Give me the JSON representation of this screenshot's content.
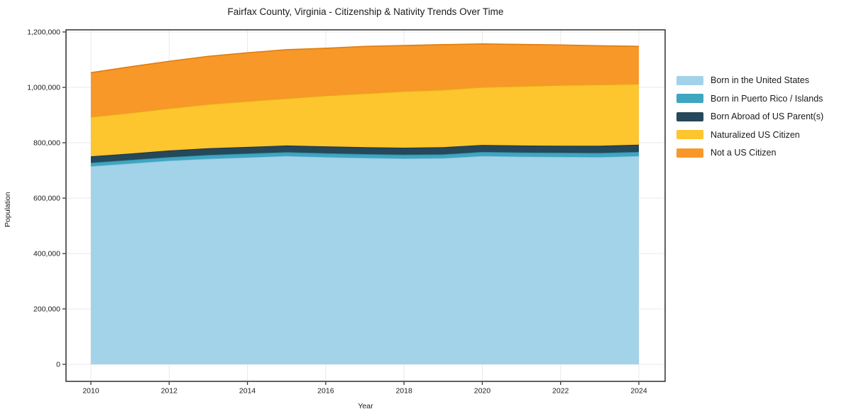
{
  "title": "Fairfax County, Virginia - Citizenship & Nativity Trends Over Time",
  "xlabel": "Year",
  "ylabel": "Population",
  "colors": {
    "background": "#ffffff",
    "frame": "#2e2e2e",
    "grid": "#e9e9e9",
    "text": "#1a1a1a"
  },
  "chart_data": {
    "type": "area",
    "stacked": true,
    "title": "Fairfax County, Virginia - Citizenship & Nativity Trends Over Time",
    "xlabel": "Year",
    "ylabel": "Population",
    "grid": true,
    "legend_position": "right",
    "xlim": [
      2010,
      2024
    ],
    "ylim": [
      0,
      1200000
    ],
    "x": [
      2010,
      2011,
      2012,
      2013,
      2014,
      2015,
      2016,
      2017,
      2018,
      2019,
      2020,
      2021,
      2022,
      2023,
      2024
    ],
    "xticks": [
      "2010",
      "2012",
      "2014",
      "2016",
      "2018",
      "2020",
      "2022",
      "2024"
    ],
    "yticks": [
      0,
      200000,
      400000,
      600000,
      800000,
      1000000,
      1200000
    ],
    "ytick_labels": [
      "0",
      "200,000",
      "400,000",
      "600,000",
      "800,000",
      "1,000,000",
      "1,200,000"
    ],
    "series": [
      {
        "name": "Born in the United States",
        "color": "#a3d3e8",
        "edge": "#85bfdb",
        "values": [
          715000,
          725000,
          735000,
          742000,
          747000,
          752000,
          748000,
          745000,
          743000,
          744000,
          752000,
          750000,
          749000,
          748000,
          752000
        ]
      },
      {
        "name": "Born in Puerto Rico / Islands",
        "color": "#3ea6c0",
        "edge": "#2e8ba3",
        "values": [
          13000,
          13000,
          13000,
          14000,
          14000,
          14000,
          14000,
          14000,
          14000,
          14000,
          15000,
          15000,
          15000,
          15000,
          15000
        ]
      },
      {
        "name": "Born Abroad of US Parent(s)",
        "color": "#25485a",
        "edge": "#16303d",
        "values": [
          23000,
          23000,
          24000,
          24000,
          24000,
          24000,
          25000,
          25000,
          25000,
          26000,
          25000,
          25000,
          25000,
          26000,
          26000
        ]
      },
      {
        "name": "Naturalized US Citizen",
        "color": "#fdc52e",
        "edge": "#e5ab15",
        "values": [
          142000,
          147000,
          152000,
          159000,
          165000,
          170000,
          183000,
          194000,
          204000,
          207000,
          209000,
          214000,
          219000,
          221000,
          219000
        ]
      },
      {
        "name": "Not a US Citizen",
        "color": "#f89829",
        "edge": "#df7f13",
        "values": [
          160000,
          166000,
          170000,
          173000,
          175000,
          176000,
          171000,
          170000,
          165000,
          163000,
          156000,
          151000,
          145000,
          140000,
          136000
        ]
      }
    ]
  }
}
